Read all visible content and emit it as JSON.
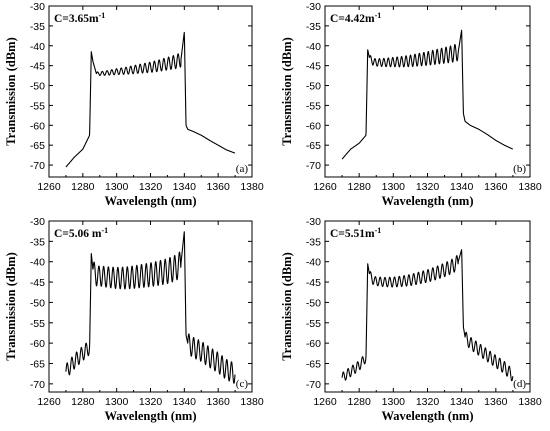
{
  "chart_data": [
    {
      "type": "line",
      "panel_label": "(a)",
      "annotation": "C=3.65m",
      "annotation_sup": "-1",
      "xlabel": "Wavelength (nm)",
      "ylabel": "Transmission (dBm)",
      "xlim": [
        1260,
        1380
      ],
      "ylim": [
        -73,
        -30
      ],
      "x_ticks": [
        "1260",
        "1280",
        "1300",
        "1320",
        "1340",
        "1360",
        "1380"
      ],
      "y_ticks": [
        "-30",
        "-35",
        "-40",
        "-45",
        "-50",
        "-55",
        "-60",
        "-65",
        "-70"
      ],
      "series": [
        {
          "x": [
            1270,
            1275,
            1280,
            1284,
            1285,
            1286,
            1288,
            1290,
            1295,
            1300,
            1305,
            1310,
            1315,
            1320,
            1325,
            1330,
            1335,
            1338,
            1340,
            1341,
            1342,
            1345,
            1350,
            1355,
            1360,
            1365,
            1370
          ],
          "y": [
            -70.5,
            -68,
            -66,
            -62.5,
            -41.5,
            -44,
            -47,
            -47,
            -46.8,
            -46.5,
            -46.3,
            -46,
            -45.7,
            -45.4,
            -45,
            -44.5,
            -44,
            -43.5,
            -36.5,
            -60,
            -61,
            -61.5,
            -62.5,
            -63.8,
            -65,
            -66.2,
            -67
          ],
          "ripple": {
            "from": 1288,
            "to": 1338,
            "period": 2.8,
            "amp_start": 0.4,
            "amp_end": 1.8
          }
        }
      ]
    },
    {
      "type": "line",
      "panel_label": "(b)",
      "annotation": "C=4.42m",
      "annotation_sup": "-1",
      "xlabel": "Wavelength (nm)",
      "ylabel": "Transmission (dBm)",
      "xlim": [
        1260,
        1380
      ],
      "ylim": [
        -73,
        -30
      ],
      "x_ticks": [
        "1260",
        "1280",
        "1300",
        "1320",
        "1340",
        "1360",
        "1380"
      ],
      "y_ticks": [
        "-30",
        "-35",
        "-40",
        "-45",
        "-50",
        "-55",
        "-60",
        "-65",
        "-70"
      ],
      "series": [
        {
          "x": [
            1270,
            1275,
            1280,
            1284,
            1285,
            1286,
            1288,
            1290,
            1295,
            1300,
            1305,
            1310,
            1315,
            1320,
            1325,
            1330,
            1335,
            1338,
            1340,
            1341,
            1342,
            1345,
            1350,
            1355,
            1360,
            1365,
            1370
          ],
          "y": [
            -68.5,
            -66,
            -64.5,
            -62.5,
            -41,
            -43,
            -44,
            -44.2,
            -44.2,
            -44.1,
            -44,
            -43.8,
            -43.5,
            -43.2,
            -42.8,
            -42.4,
            -42,
            -41.5,
            -36,
            -57,
            -59,
            -60,
            -61,
            -62.3,
            -63.8,
            -65,
            -66
          ],
          "ripple": {
            "from": 1286,
            "to": 1338,
            "period": 2.6,
            "amp_start": 0.8,
            "amp_end": 2.2
          }
        }
      ]
    },
    {
      "type": "line",
      "panel_label": "(c)",
      "annotation": "C=5.06 m",
      "annotation_sup": "-1",
      "xlabel": "Wavelength (nm)",
      "ylabel": "Transmission (dBm)",
      "xlim": [
        1260,
        1380
      ],
      "ylim": [
        -72,
        -30
      ],
      "x_ticks": [
        "1260",
        "1280",
        "1300",
        "1320",
        "1340",
        "1360",
        "1380"
      ],
      "y_ticks": [
        "-30",
        "-35",
        "-40",
        "-45",
        "-50",
        "-55",
        "-60",
        "-65",
        "-70"
      ],
      "series": [
        {
          "x": [
            1270,
            1275,
            1280,
            1284,
            1285,
            1286,
            1288,
            1290,
            1295,
            1300,
            1305,
            1310,
            1315,
            1320,
            1325,
            1330,
            1335,
            1338,
            1340,
            1341,
            1342,
            1345,
            1350,
            1355,
            1360,
            1365,
            1370
          ],
          "y": [
            -67,
            -64.5,
            -62.5,
            -61,
            -38,
            -42,
            -43.5,
            -43.5,
            -43.8,
            -44,
            -44,
            -43.8,
            -43.5,
            -43.2,
            -42.8,
            -42.3,
            -41.5,
            -40.5,
            -32.5,
            -58,
            -60,
            -61,
            -62,
            -63.5,
            -64.8,
            -66.5,
            -67.5
          ],
          "ripple": {
            "from": 1286,
            "to": 1338,
            "period": 2.8,
            "amp_start": 2.4,
            "amp_end": 3.2
          },
          "tail_ripple": {
            "from": 1342,
            "to": 1370,
            "period": 2.8,
            "amp": 2.5
          },
          "head_ripple": {
            "from": 1270,
            "to": 1284,
            "period": 2.8,
            "amp": 1.8
          }
        }
      ]
    },
    {
      "type": "line",
      "panel_label": "(d)",
      "annotation": "C=5.51m",
      "annotation_sup": "-1",
      "xlabel": "Wavelength (nm)",
      "ylabel": "Transmission (dBm)",
      "xlim": [
        1260,
        1380
      ],
      "ylim": [
        -72,
        -30
      ],
      "x_ticks": [
        "1260",
        "1280",
        "1300",
        "1320",
        "1340",
        "1360",
        "1380"
      ],
      "y_ticks": [
        "-30",
        "-35",
        "-40",
        "-45",
        "-50",
        "-55",
        "-60",
        "-65",
        "-70"
      ],
      "series": [
        {
          "x": [
            1270,
            1275,
            1280,
            1284,
            1285,
            1286,
            1288,
            1290,
            1295,
            1300,
            1305,
            1310,
            1315,
            1320,
            1325,
            1330,
            1335,
            1338,
            1340,
            1341,
            1342,
            1345,
            1350,
            1355,
            1360,
            1365,
            1370
          ],
          "y": [
            -68.5,
            -67,
            -65.5,
            -63.5,
            -40.5,
            -43,
            -44.5,
            -44.8,
            -45,
            -45,
            -44.8,
            -44.5,
            -44,
            -43.5,
            -42.8,
            -42,
            -41,
            -40,
            -37,
            -56,
            -58.5,
            -60,
            -61.5,
            -63,
            -64.5,
            -66,
            -68
          ],
          "ripple": {
            "from": 1286,
            "to": 1338,
            "period": 2.8,
            "amp_start": 1.0,
            "amp_end": 1.8
          },
          "tail_ripple": {
            "from": 1342,
            "to": 1370,
            "period": 2.8,
            "amp": 1.5
          },
          "head_ripple": {
            "from": 1270,
            "to": 1284,
            "period": 2.8,
            "amp": 1.2
          }
        }
      ]
    }
  ]
}
